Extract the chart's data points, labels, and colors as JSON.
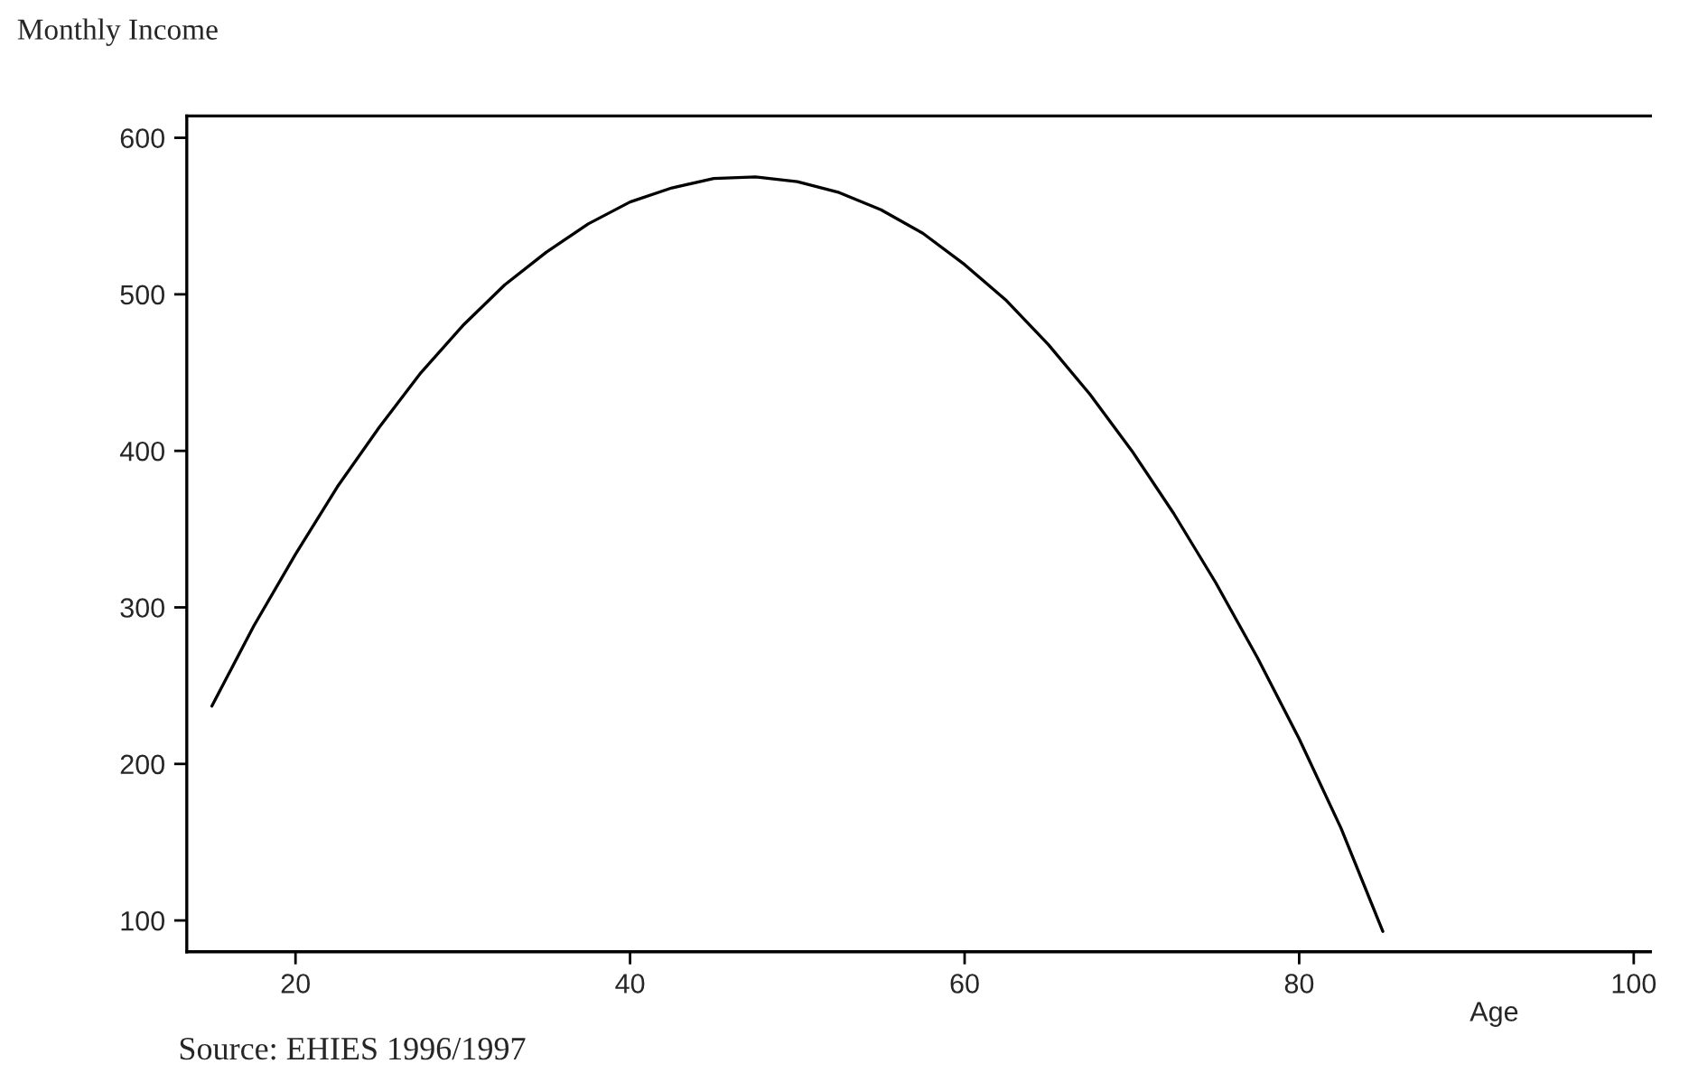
{
  "chart_data": {
    "type": "line",
    "xlabel": "Age",
    "ylabel": "Monthly Income",
    "annotations": [
      "Source: EHIES 1996/1997"
    ],
    "x": [
      15,
      17.5,
      20,
      22.5,
      25,
      27.5,
      30,
      32.5,
      35,
      37.5,
      40,
      42.5,
      45,
      47.5,
      50,
      52.5,
      55,
      57.5,
      60,
      62.5,
      65,
      67.5,
      70,
      72.5,
      75,
      77.5,
      80,
      82.5,
      85
    ],
    "series": [
      {
        "color": "#000000",
        "values": [
          237,
          288,
          334,
          377,
          415,
          450,
          480,
          506,
          527,
          545,
          559,
          568,
          574,
          575,
          572,
          565,
          554,
          539,
          519,
          496,
          468,
          436,
          400,
          360,
          316,
          268,
          216,
          159,
          93
        ]
      }
    ],
    "xlim": [
      13.5,
      101
    ],
    "ylim": [
      80,
      614
    ],
    "xticks": [
      20,
      40,
      60,
      80,
      100
    ],
    "yticks": [
      100,
      200,
      300,
      400,
      500,
      600
    ],
    "grid": false,
    "legend": false,
    "marker": "none",
    "line_style": "solid"
  }
}
